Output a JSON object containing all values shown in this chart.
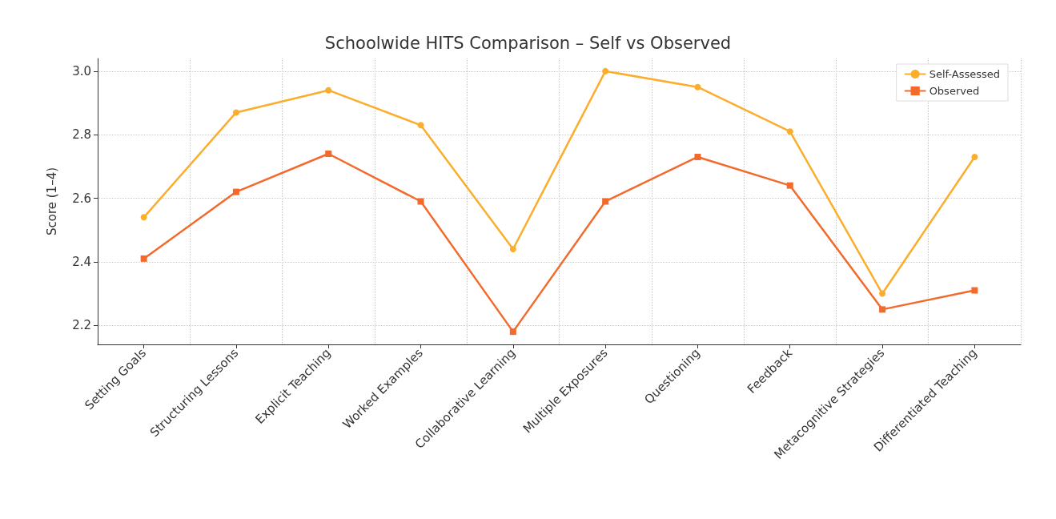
{
  "chart_data": {
    "type": "line",
    "title": "Schoolwide HITS Comparison – Self vs Observed",
    "ylabel": "Score (1–4)",
    "categories": [
      "Setting Goals",
      "Structuring Lessons",
      "Explicit Teaching",
      "Worked Examples",
      "Collaborative Learning",
      "Multiple Exposures",
      "Questioning",
      "Feedback",
      "Metacognitive Strategies",
      "Differentiated Teaching"
    ],
    "series": [
      {
        "name": "Self-Assessed",
        "color": "#fbad2c",
        "marker": "circle",
        "values": [
          2.54,
          2.87,
          2.94,
          2.83,
          2.44,
          3.0,
          2.95,
          2.81,
          2.3,
          2.73
        ]
      },
      {
        "name": "Observed",
        "color": "#f26a2c",
        "marker": "square",
        "values": [
          2.41,
          2.62,
          2.74,
          2.59,
          2.18,
          2.59,
          2.73,
          2.64,
          2.25,
          2.31
        ]
      }
    ],
    "ylim": [
      2.14,
      3.04
    ],
    "yticks": [
      {
        "value": 2.2,
        "label": "2.2"
      },
      {
        "value": 2.4,
        "label": "2.4"
      },
      {
        "value": 2.6,
        "label": "2.6"
      },
      {
        "value": 2.8,
        "label": "2.8"
      },
      {
        "value": 3,
        "label": "3.0"
      }
    ],
    "grid": true,
    "legend": "top right",
    "line_style": "solid"
  }
}
